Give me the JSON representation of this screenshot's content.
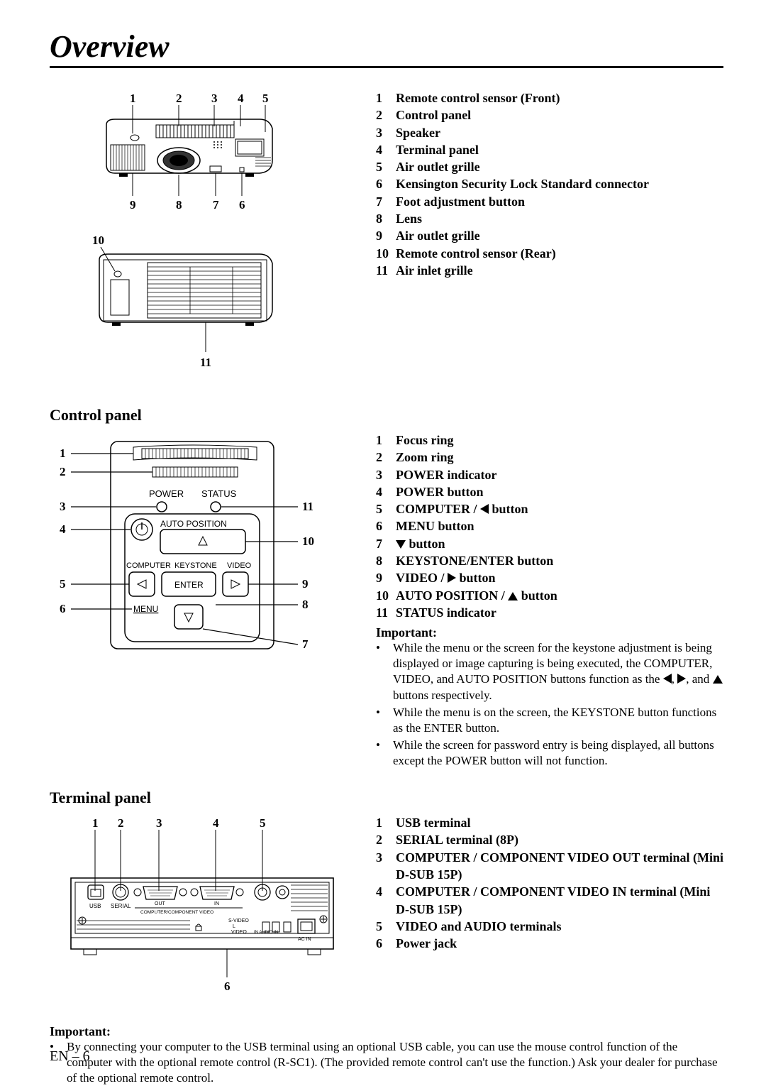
{
  "page": {
    "title": "Overview",
    "page_number": "EN – 6"
  },
  "overview_parts": [
    {
      "n": "1",
      "t": "Remote control sensor (Front)"
    },
    {
      "n": "2",
      "t": "Control panel"
    },
    {
      "n": "3",
      "t": "Speaker"
    },
    {
      "n": "4",
      "t": "Terminal panel"
    },
    {
      "n": "5",
      "t": "Air outlet grille"
    },
    {
      "n": "6",
      "t": "Kensington Security Lock Standard connector"
    },
    {
      "n": "7",
      "t": "Foot adjustment button"
    },
    {
      "n": "8",
      "t": "Lens"
    },
    {
      "n": "9",
      "t": "Air outlet grille"
    },
    {
      "n": "10",
      "t": "Remote control sensor (Rear)"
    },
    {
      "n": "11",
      "t": "Air inlet grille"
    }
  ],
  "control_panel": {
    "title": "Control panel",
    "items": [
      {
        "n": "1",
        "t": "Focus ring"
      },
      {
        "n": "2",
        "t": "Zoom ring"
      },
      {
        "n": "3",
        "t": "POWER indicator"
      },
      {
        "n": "4",
        "t": "POWER button"
      },
      {
        "n": "5",
        "t": "COMPUTER / ◀ button",
        "icon": "left"
      },
      {
        "n": "6",
        "t": "MENU button"
      },
      {
        "n": "7",
        "t": "▼ button",
        "icon": "down"
      },
      {
        "n": "8",
        "t": "KEYSTONE/ENTER button"
      },
      {
        "n": "9",
        "t": "VIDEO / ▶ button",
        "icon": "right"
      },
      {
        "n": "10",
        "t": "AUTO POSITION / ▲ button",
        "icon": "up"
      },
      {
        "n": "11",
        "t": "STATUS indicator"
      }
    ],
    "important_label": "Important:",
    "important": [
      "While the menu or the screen for the keystone adjustment is being displayed or image capturing is being executed, the COMPUTER, VIDEO, and AUTO POSITION buttons function as the ◀, ▶, and ▲ buttons respectively.",
      "While the menu is on the screen, the KEYSTONE button functions as the ENTER button.",
      "While the screen for password entry is being displayed, all buttons except the POWER button will not function."
    ]
  },
  "terminal_panel": {
    "title": "Terminal panel",
    "items": [
      {
        "n": "1",
        "t": "USB terminal"
      },
      {
        "n": "2",
        "t": "SERIAL terminal (8P)"
      },
      {
        "n": "3",
        "t": "COMPUTER / COMPONENT VIDEO OUT terminal (Mini D-SUB 15P)"
      },
      {
        "n": "4",
        "t": "COMPUTER / COMPONENT VIDEO IN terminal (Mini D-SUB 15P)"
      },
      {
        "n": "5",
        "t": "VIDEO and AUDIO terminals"
      },
      {
        "n": "6",
        "t": "Power jack"
      }
    ]
  },
  "footer_important": {
    "label": "Important:",
    "text": "By connecting your computer to the USB terminal using an optional USB cable, you can use the mouse control function of the computer with the optional remote control (R-SC1). (The provided remote control can't use the function.) Ask your dealer for purchase of the optional remote control."
  },
  "svg_labels": {
    "power": "POWER",
    "status": "STATUS",
    "auto_position": "AUTO POSITION",
    "computer": "COMPUTER",
    "keystone": "KEYSTONE",
    "video": "VIDEO",
    "enter": "ENTER",
    "menu": "MENU",
    "usb": "USB",
    "serial": "SERIAL",
    "out": "OUT",
    "in": "IN",
    "comp_video": "COMPUTER/COMPONENT VIDEO",
    "svideo": "S-VIDEO",
    "video_l": "VIDEO",
    "audio_in": "IN AUDIO IN",
    "ac_in": "AC IN"
  }
}
